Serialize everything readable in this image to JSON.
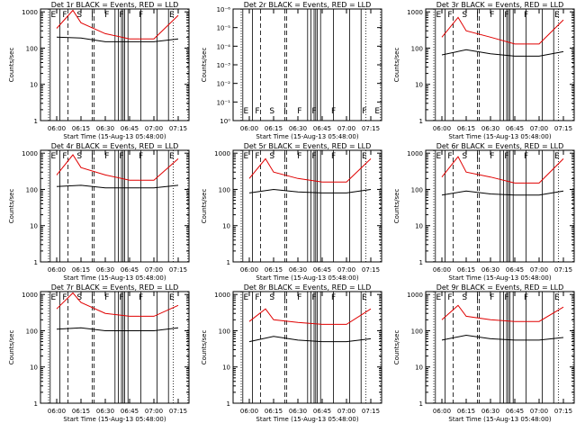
{
  "figure": {
    "xlabel": "Start Time (15-Aug-13 05:48:00)",
    "ylabel": "Counts/sec",
    "xticks": [
      "06:00",
      "06:15",
      "06:30",
      "06:45",
      "07:00",
      "07:15"
    ],
    "yticks_counts": [
      "1",
      "10",
      "100",
      "1000"
    ],
    "yticks_empty": [
      "10⁰",
      "10⁻¹",
      "10⁻²",
      "10⁻³",
      "10⁻⁴",
      "10⁻⁵",
      "10⁻⁶"
    ]
  },
  "colors": {
    "events": "#000000",
    "lld": "#e00000",
    "axes": "#000000"
  },
  "chart_data": [
    {
      "type": "line",
      "title": "Det 1r BLACK = Events, RED = LLD",
      "x_time_min_after_0548": [
        12,
        87
      ],
      "ylim": [
        1,
        1200
      ],
      "yscale": "log",
      "series": [
        {
          "name": "Events",
          "color": "black",
          "values": [
            {
              "x": "06:00",
              "y": 200
            },
            {
              "x": "06:15",
              "y": 190
            },
            {
              "x": "06:30",
              "y": 150
            },
            {
              "x": "06:45",
              "y": 150
            },
            {
              "x": "07:00",
              "y": 150
            },
            {
              "x": "07:15",
              "y": 180
            }
          ]
        },
        {
          "name": "LLD",
          "color": "red",
          "values": [
            {
              "x": "06:00",
              "y": 350
            },
            {
              "x": "06:10",
              "y": 1100
            },
            {
              "x": "06:15",
              "y": 500
            },
            {
              "x": "06:30",
              "y": 250
            },
            {
              "x": "06:45",
              "y": 180
            },
            {
              "x": "07:00",
              "y": 180
            },
            {
              "x": "07:15",
              "y": 800
            }
          ]
        }
      ],
      "annotations": [
        "E",
        "F",
        "S",
        "I",
        "F",
        "F",
        "F",
        "E"
      ]
    },
    {
      "type": "line",
      "title": "Det 2r BLACK = Events, RED = LLD",
      "ylim": [
        "1e-6",
        "1"
      ],
      "yscale": "log",
      "series": [],
      "annotations": [
        "E",
        "F",
        "S",
        "I",
        "F",
        "F",
        "F",
        "F",
        "E"
      ]
    },
    {
      "type": "line",
      "title": "Det 3r BLACK = Events, RED = LLD",
      "ylim": [
        1,
        1200
      ],
      "yscale": "log",
      "series": [
        {
          "name": "Events",
          "color": "black",
          "values": [
            {
              "x": "06:00",
              "y": 65
            },
            {
              "x": "06:15",
              "y": 90
            },
            {
              "x": "06:30",
              "y": 70
            },
            {
              "x": "06:45",
              "y": 60
            },
            {
              "x": "07:00",
              "y": 60
            },
            {
              "x": "07:15",
              "y": 80
            }
          ]
        },
        {
          "name": "LLD",
          "color": "red",
          "values": [
            {
              "x": "06:00",
              "y": 200
            },
            {
              "x": "06:10",
              "y": 700
            },
            {
              "x": "06:15",
              "y": 300
            },
            {
              "x": "06:30",
              "y": 200
            },
            {
              "x": "06:45",
              "y": 130
            },
            {
              "x": "07:00",
              "y": 130
            },
            {
              "x": "07:15",
              "y": 600
            }
          ]
        }
      ],
      "annotations": [
        "E",
        "F",
        "S",
        "I",
        "F",
        "F",
        "F",
        "E"
      ]
    },
    {
      "type": "line",
      "title": "Det 4r BLACK = Events, RED = LLD",
      "ylim": [
        1,
        1200
      ],
      "yscale": "log",
      "series": [
        {
          "name": "Events",
          "color": "black",
          "values": [
            {
              "x": "06:00",
              "y": 120
            },
            {
              "x": "06:15",
              "y": 130
            },
            {
              "x": "06:30",
              "y": 110
            },
            {
              "x": "06:45",
              "y": 110
            },
            {
              "x": "07:00",
              "y": 110
            },
            {
              "x": "07:15",
              "y": 130
            }
          ]
        },
        {
          "name": "LLD",
          "color": "red",
          "values": [
            {
              "x": "06:00",
              "y": 250
            },
            {
              "x": "06:10",
              "y": 900
            },
            {
              "x": "06:15",
              "y": 400
            },
            {
              "x": "06:30",
              "y": 250
            },
            {
              "x": "06:45",
              "y": 180
            },
            {
              "x": "07:00",
              "y": 180
            },
            {
              "x": "07:15",
              "y": 700
            }
          ]
        }
      ],
      "annotations": [
        "E",
        "F",
        "S",
        "I",
        "F",
        "F",
        "F",
        "E"
      ]
    },
    {
      "type": "line",
      "title": "Det 5r BLACK = Events, RED = LLD",
      "ylim": [
        1,
        1200
      ],
      "yscale": "log",
      "series": [
        {
          "name": "Events",
          "color": "black",
          "values": [
            {
              "x": "06:00",
              "y": 80
            },
            {
              "x": "06:15",
              "y": 100
            },
            {
              "x": "06:30",
              "y": 85
            },
            {
              "x": "06:45",
              "y": 80
            },
            {
              "x": "07:00",
              "y": 80
            },
            {
              "x": "07:15",
              "y": 100
            }
          ]
        },
        {
          "name": "LLD",
          "color": "red",
          "values": [
            {
              "x": "06:00",
              "y": 200
            },
            {
              "x": "06:10",
              "y": 700
            },
            {
              "x": "06:15",
              "y": 300
            },
            {
              "x": "06:30",
              "y": 200
            },
            {
              "x": "06:45",
              "y": 160
            },
            {
              "x": "07:00",
              "y": 160
            },
            {
              "x": "07:15",
              "y": 700
            }
          ]
        }
      ],
      "annotations": [
        "E",
        "F",
        "S",
        "I",
        "F",
        "F",
        "F",
        "E"
      ]
    },
    {
      "type": "line",
      "title": "Det 6r BLACK = Events, RED = LLD",
      "ylim": [
        1,
        1200
      ],
      "yscale": "log",
      "series": [
        {
          "name": "Events",
          "color": "black",
          "values": [
            {
              "x": "06:00",
              "y": 70
            },
            {
              "x": "06:15",
              "y": 90
            },
            {
              "x": "06:30",
              "y": 75
            },
            {
              "x": "06:45",
              "y": 70
            },
            {
              "x": "07:00",
              "y": 70
            },
            {
              "x": "07:15",
              "y": 90
            }
          ]
        },
        {
          "name": "LLD",
          "color": "red",
          "values": [
            {
              "x": "06:00",
              "y": 220
            },
            {
              "x": "06:10",
              "y": 800
            },
            {
              "x": "06:15",
              "y": 300
            },
            {
              "x": "06:30",
              "y": 220
            },
            {
              "x": "06:45",
              "y": 150
            },
            {
              "x": "07:00",
              "y": 150
            },
            {
              "x": "07:15",
              "y": 700
            }
          ]
        }
      ],
      "annotations": [
        "E",
        "F",
        "S",
        "I",
        "F",
        "F",
        "F",
        "E"
      ]
    },
    {
      "type": "line",
      "title": "Det 7r BLACK = Events, RED = LLD",
      "ylim": [
        1,
        1200
      ],
      "yscale": "log",
      "series": [
        {
          "name": "Events",
          "color": "black",
          "values": [
            {
              "x": "06:00",
              "y": 110
            },
            {
              "x": "06:15",
              "y": 120
            },
            {
              "x": "06:30",
              "y": 100
            },
            {
              "x": "06:45",
              "y": 100
            },
            {
              "x": "07:00",
              "y": 100
            },
            {
              "x": "07:15",
              "y": 120
            }
          ]
        },
        {
          "name": "LLD",
          "color": "red",
          "values": [
            {
              "x": "06:00",
              "y": 400
            },
            {
              "x": "06:10",
              "y": 1100
            },
            {
              "x": "06:15",
              "y": 600
            },
            {
              "x": "06:30",
              "y": 300
            },
            {
              "x": "06:45",
              "y": 250
            },
            {
              "x": "07:00",
              "y": 250
            },
            {
              "x": "07:15",
              "y": 500
            }
          ]
        }
      ],
      "annotations": [
        "E",
        "F",
        "S",
        "I",
        "F",
        "F",
        "F",
        "E"
      ]
    },
    {
      "type": "line",
      "title": "Det 8r BLACK = Events, RED = LLD",
      "ylim": [
        1,
        1200
      ],
      "yscale": "log",
      "series": [
        {
          "name": "Events",
          "color": "black",
          "values": [
            {
              "x": "06:00",
              "y": 50
            },
            {
              "x": "06:15",
              "y": 70
            },
            {
              "x": "06:30",
              "y": 55
            },
            {
              "x": "06:45",
              "y": 50
            },
            {
              "x": "07:00",
              "y": 50
            },
            {
              "x": "07:15",
              "y": 60
            }
          ]
        },
        {
          "name": "LLD",
          "color": "red",
          "values": [
            {
              "x": "06:00",
              "y": 180
            },
            {
              "x": "06:10",
              "y": 400
            },
            {
              "x": "06:15",
              "y": 200
            },
            {
              "x": "06:30",
              "y": 170
            },
            {
              "x": "06:45",
              "y": 150
            },
            {
              "x": "07:00",
              "y": 150
            },
            {
              "x": "07:15",
              "y": 400
            }
          ]
        }
      ],
      "annotations": [
        "E",
        "F",
        "S",
        "I",
        "F",
        "F",
        "F",
        "E"
      ]
    },
    {
      "type": "line",
      "title": "Det 9r BLACK = Events, RED = LLD",
      "ylim": [
        1,
        1200
      ],
      "yscale": "log",
      "series": [
        {
          "name": "Events",
          "color": "black",
          "values": [
            {
              "x": "06:00",
              "y": 55
            },
            {
              "x": "06:15",
              "y": 75
            },
            {
              "x": "06:30",
              "y": 60
            },
            {
              "x": "06:45",
              "y": 55
            },
            {
              "x": "07:00",
              "y": 55
            },
            {
              "x": "07:15",
              "y": 65
            }
          ]
        },
        {
          "name": "LLD",
          "color": "red",
          "values": [
            {
              "x": "06:00",
              "y": 200
            },
            {
              "x": "06:10",
              "y": 500
            },
            {
              "x": "06:15",
              "y": 250
            },
            {
              "x": "06:30",
              "y": 200
            },
            {
              "x": "06:45",
              "y": 180
            },
            {
              "x": "07:00",
              "y": 180
            },
            {
              "x": "07:15",
              "y": 450
            }
          ]
        }
      ],
      "annotations": [
        "E",
        "F",
        "S",
        "I",
        "F",
        "F",
        "F",
        "E"
      ]
    }
  ]
}
